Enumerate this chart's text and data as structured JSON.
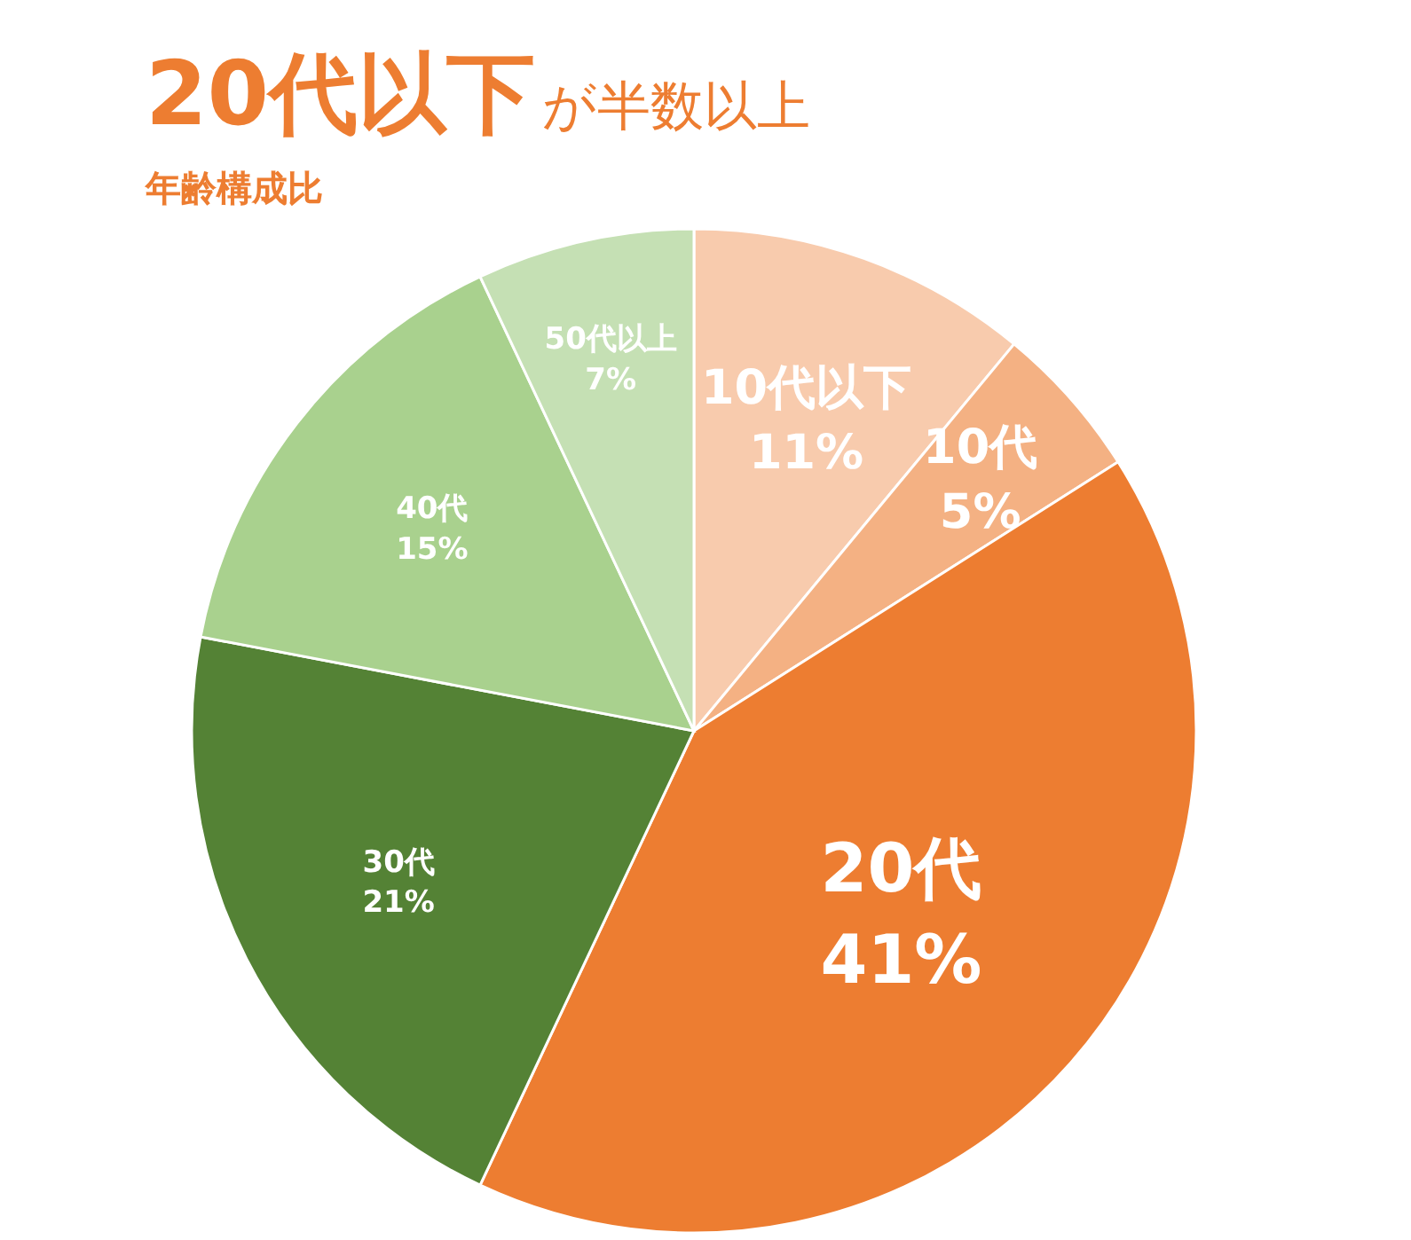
{
  "chart_data": {
    "type": "pie",
    "title": "**20代以下**が半数以上",
    "subtitle": "年齢構成比",
    "categories": [
      "10代以下",
      "10代",
      "20代",
      "30代",
      "40代",
      "50代以上"
    ],
    "values": [
      11,
      5,
      41,
      21,
      15,
      7
    ],
    "value_labels": [
      "11%",
      "5%",
      "41%",
      "21%",
      "15%",
      "7%"
    ],
    "colors": [
      "#f8cbad",
      "#f4b183",
      "#ed7d31",
      "#548235",
      "#a9d18e",
      "#c5e0b4"
    ]
  }
}
